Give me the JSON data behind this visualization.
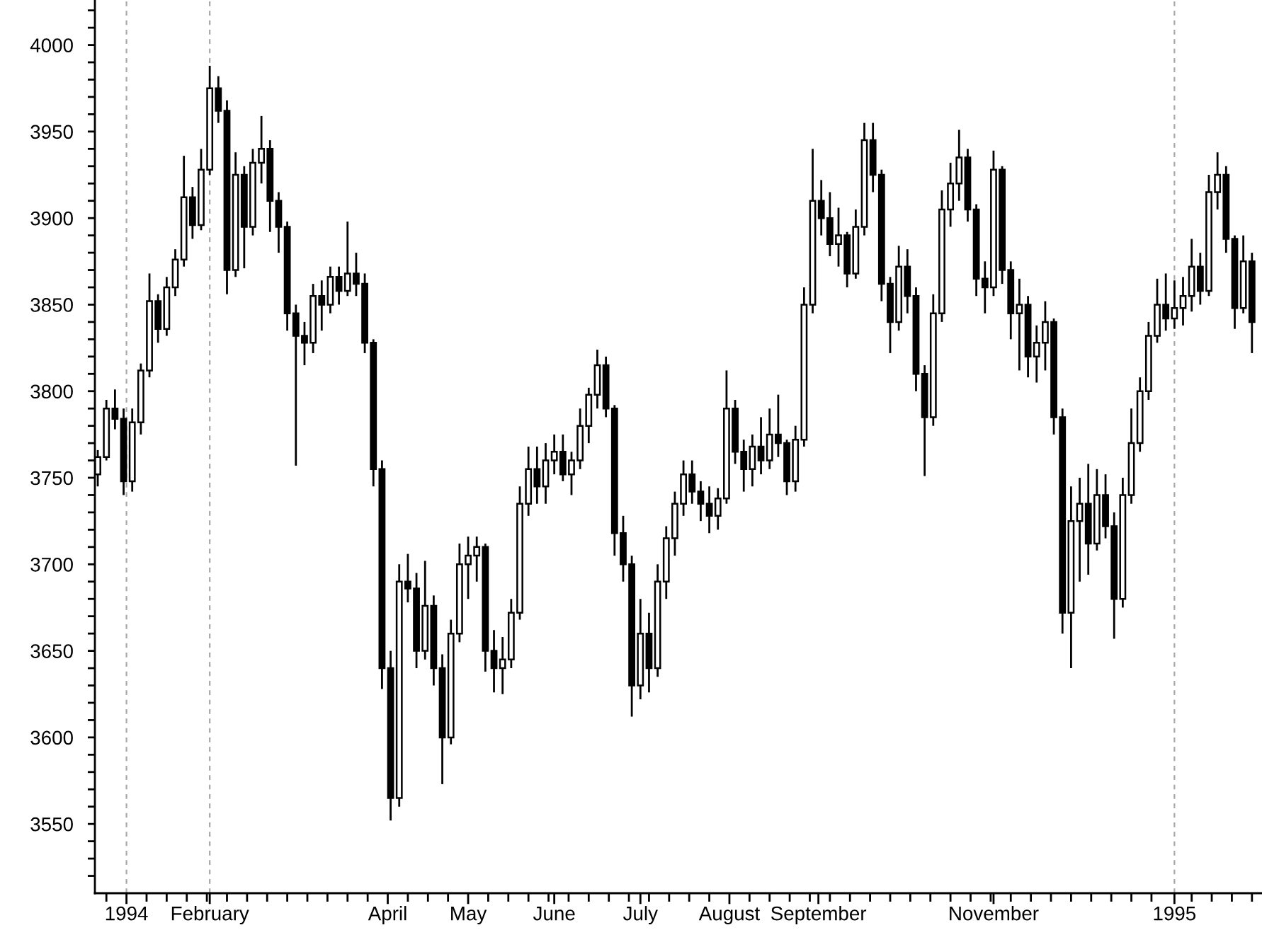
{
  "chart_data": {
    "type": "candlestick",
    "color": "#000000",
    "x": [
      "1993-12-24",
      "1993-12-27",
      "1993-12-30",
      "1994-01-02",
      "1994-01-05",
      "1994-01-08",
      "1994-01-11",
      "1994-01-14",
      "1994-01-17",
      "1994-01-20",
      "1994-01-23",
      "1994-01-26",
      "1994-01-29",
      "1994-02-01",
      "1994-02-04",
      "1994-02-07",
      "1994-02-10",
      "1994-02-13",
      "1994-02-16",
      "1994-02-19",
      "1994-02-22",
      "1994-02-25",
      "1994-02-28",
      "1994-03-03",
      "1994-03-06",
      "1994-03-09",
      "1994-03-12",
      "1994-03-15",
      "1994-03-18",
      "1994-03-21",
      "1994-03-24",
      "1994-03-27",
      "1994-03-30",
      "1994-04-02",
      "1994-04-05",
      "1994-04-08",
      "1994-04-11",
      "1994-04-14",
      "1994-04-17",
      "1994-04-20",
      "1994-04-23",
      "1994-04-26",
      "1994-04-29",
      "1994-05-02",
      "1994-05-05",
      "1994-05-08",
      "1994-05-11",
      "1994-05-14",
      "1994-05-17",
      "1994-05-20",
      "1994-05-23",
      "1994-05-26",
      "1994-05-29",
      "1994-06-01",
      "1994-06-04",
      "1994-06-07",
      "1994-06-10",
      "1994-06-13",
      "1994-06-16",
      "1994-06-19",
      "1994-06-22",
      "1994-06-25",
      "1994-06-28",
      "1994-07-01",
      "1994-07-04",
      "1994-07-07",
      "1994-07-10",
      "1994-07-13",
      "1994-07-16",
      "1994-07-19",
      "1994-07-22",
      "1994-07-25",
      "1994-07-28",
      "1994-07-31",
      "1994-08-03",
      "1994-08-06",
      "1994-08-09",
      "1994-08-12",
      "1994-08-15",
      "1994-08-18",
      "1994-08-21",
      "1994-08-24",
      "1994-08-27",
      "1994-08-30",
      "1994-09-02",
      "1994-09-05",
      "1994-09-08",
      "1994-09-11",
      "1994-09-14",
      "1994-09-17",
      "1994-09-20",
      "1994-09-23",
      "1994-09-26",
      "1994-09-29",
      "1994-10-02",
      "1994-10-05",
      "1994-10-08",
      "1994-10-11",
      "1994-10-14",
      "1994-10-17",
      "1994-10-20",
      "1994-10-23",
      "1994-10-26",
      "1994-10-29",
      "1994-11-01",
      "1994-11-04",
      "1994-11-07",
      "1994-11-10",
      "1994-11-13",
      "1994-11-16",
      "1994-11-19",
      "1994-11-22",
      "1994-11-25",
      "1994-11-28",
      "1994-12-01",
      "1994-12-04",
      "1994-12-07",
      "1994-12-10",
      "1994-12-13",
      "1994-12-16",
      "1994-12-19",
      "1994-12-22",
      "1994-12-25",
      "1994-12-28",
      "1994-12-31",
      "1995-01-03",
      "1995-01-06",
      "1995-01-09",
      "1995-01-12",
      "1995-01-15",
      "1995-01-18",
      "1995-01-21",
      "1995-01-24",
      "1995-01-27",
      "1995-01-30"
    ],
    "ohlc": [
      [
        3752,
        3766,
        3745,
        3762
      ],
      [
        3762,
        3795,
        3760,
        3790
      ],
      [
        3790,
        3801,
        3778,
        3784
      ],
      [
        3784,
        3790,
        3740,
        3748
      ],
      [
        3748,
        3790,
        3742,
        3782
      ],
      [
        3782,
        3816,
        3775,
        3812
      ],
      [
        3812,
        3868,
        3808,
        3852
      ],
      [
        3852,
        3856,
        3828,
        3836
      ],
      [
        3836,
        3866,
        3832,
        3860
      ],
      [
        3860,
        3882,
        3855,
        3876
      ],
      [
        3876,
        3936,
        3872,
        3912
      ],
      [
        3912,
        3918,
        3888,
        3896
      ],
      [
        3896,
        3940,
        3893,
        3928
      ],
      [
        3928,
        3988,
        3925,
        3975
      ],
      [
        3975,
        3982,
        3955,
        3962
      ],
      [
        3962,
        3968,
        3856,
        3870
      ],
      [
        3870,
        3938,
        3866,
        3925
      ],
      [
        3925,
        3930,
        3871,
        3895
      ],
      [
        3895,
        3940,
        3890,
        3932
      ],
      [
        3932,
        3959,
        3920,
        3940
      ],
      [
        3940,
        3945,
        3892,
        3910
      ],
      [
        3910,
        3915,
        3880,
        3895
      ],
      [
        3895,
        3898,
        3835,
        3845
      ],
      [
        3845,
        3850,
        3757,
        3832
      ],
      [
        3832,
        3840,
        3815,
        3828
      ],
      [
        3828,
        3862,
        3822,
        3855
      ],
      [
        3855,
        3864,
        3835,
        3850
      ],
      [
        3850,
        3872,
        3845,
        3866
      ],
      [
        3866,
        3872,
        3850,
        3858
      ],
      [
        3858,
        3898,
        3855,
        3868
      ],
      [
        3868,
        3880,
        3855,
        3862
      ],
      [
        3862,
        3868,
        3822,
        3828
      ],
      [
        3828,
        3830,
        3745,
        3755
      ],
      [
        3755,
        3760,
        3628,
        3640
      ],
      [
        3640,
        3650,
        3552,
        3565
      ],
      [
        3565,
        3700,
        3560,
        3690
      ],
      [
        3690,
        3706,
        3678,
        3686
      ],
      [
        3686,
        3695,
        3640,
        3650
      ],
      [
        3650,
        3702,
        3645,
        3676
      ],
      [
        3676,
        3682,
        3630,
        3640
      ],
      [
        3640,
        3648,
        3573,
        3600
      ],
      [
        3600,
        3668,
        3596,
        3660
      ],
      [
        3660,
        3712,
        3655,
        3700
      ],
      [
        3700,
        3716,
        3680,
        3705
      ],
      [
        3705,
        3716,
        3690,
        3710
      ],
      [
        3710,
        3712,
        3638,
        3650
      ],
      [
        3650,
        3662,
        3626,
        3640
      ],
      [
        3640,
        3658,
        3625,
        3645
      ],
      [
        3645,
        3680,
        3640,
        3672
      ],
      [
        3672,
        3745,
        3668,
        3735
      ],
      [
        3735,
        3768,
        3728,
        3755
      ],
      [
        3755,
        3768,
        3735,
        3745
      ],
      [
        3745,
        3770,
        3735,
        3760
      ],
      [
        3760,
        3775,
        3752,
        3765
      ],
      [
        3765,
        3775,
        3748,
        3752
      ],
      [
        3752,
        3765,
        3740,
        3760
      ],
      [
        3760,
        3790,
        3755,
        3780
      ],
      [
        3780,
        3802,
        3770,
        3798
      ],
      [
        3798,
        3824,
        3790,
        3815
      ],
      [
        3815,
        3820,
        3785,
        3790
      ],
      [
        3790,
        3792,
        3705,
        3718
      ],
      [
        3718,
        3728,
        3690,
        3700
      ],
      [
        3700,
        3705,
        3612,
        3630
      ],
      [
        3630,
        3680,
        3622,
        3660
      ],
      [
        3660,
        3672,
        3626,
        3640
      ],
      [
        3640,
        3700,
        3635,
        3690
      ],
      [
        3690,
        3722,
        3680,
        3715
      ],
      [
        3715,
        3742,
        3705,
        3735
      ],
      [
        3735,
        3760,
        3728,
        3752
      ],
      [
        3752,
        3760,
        3735,
        3742
      ],
      [
        3742,
        3748,
        3725,
        3735
      ],
      [
        3735,
        3745,
        3718,
        3728
      ],
      [
        3728,
        3744,
        3720,
        3738
      ],
      [
        3738,
        3812,
        3735,
        3790
      ],
      [
        3790,
        3795,
        3758,
        3765
      ],
      [
        3765,
        3772,
        3742,
        3755
      ],
      [
        3755,
        3775,
        3745,
        3768
      ],
      [
        3768,
        3785,
        3752,
        3760
      ],
      [
        3760,
        3790,
        3755,
        3775
      ],
      [
        3775,
        3798,
        3762,
        3770
      ],
      [
        3770,
        3772,
        3740,
        3748
      ],
      [
        3748,
        3780,
        3742,
        3772
      ],
      [
        3772,
        3860,
        3768,
        3850
      ],
      [
        3850,
        3940,
        3845,
        3910
      ],
      [
        3910,
        3922,
        3890,
        3900
      ],
      [
        3900,
        3915,
        3878,
        3885
      ],
      [
        3885,
        3906,
        3872,
        3890
      ],
      [
        3890,
        3892,
        3860,
        3868
      ],
      [
        3868,
        3905,
        3865,
        3895
      ],
      [
        3895,
        3955,
        3890,
        3945
      ],
      [
        3945,
        3955,
        3915,
        3925
      ],
      [
        3925,
        3928,
        3852,
        3862
      ],
      [
        3862,
        3866,
        3822,
        3840
      ],
      [
        3840,
        3884,
        3835,
        3872
      ],
      [
        3872,
        3882,
        3845,
        3855
      ],
      [
        3855,
        3860,
        3800,
        3810
      ],
      [
        3810,
        3815,
        3751,
        3785
      ],
      [
        3785,
        3856,
        3780,
        3845
      ],
      [
        3845,
        3916,
        3840,
        3905
      ],
      [
        3905,
        3932,
        3895,
        3920
      ],
      [
        3920,
        3951,
        3910,
        3935
      ],
      [
        3935,
        3940,
        3898,
        3905
      ],
      [
        3905,
        3908,
        3855,
        3865
      ],
      [
        3865,
        3875,
        3845,
        3860
      ],
      [
        3860,
        3939,
        3855,
        3928
      ],
      [
        3928,
        3930,
        3862,
        3870
      ],
      [
        3870,
        3875,
        3830,
        3845
      ],
      [
        3845,
        3865,
        3812,
        3850
      ],
      [
        3850,
        3855,
        3808,
        3820
      ],
      [
        3820,
        3838,
        3805,
        3828
      ],
      [
        3828,
        3852,
        3812,
        3840
      ],
      [
        3840,
        3842,
        3775,
        3785
      ],
      [
        3785,
        3790,
        3660,
        3672
      ],
      [
        3672,
        3745,
        3640,
        3725
      ],
      [
        3725,
        3750,
        3690,
        3735
      ],
      [
        3735,
        3758,
        3694,
        3712
      ],
      [
        3712,
        3755,
        3708,
        3740
      ],
      [
        3740,
        3752,
        3715,
        3722
      ],
      [
        3722,
        3730,
        3657,
        3680
      ],
      [
        3680,
        3750,
        3675,
        3740
      ],
      [
        3740,
        3790,
        3735,
        3770
      ],
      [
        3770,
        3808,
        3765,
        3800
      ],
      [
        3800,
        3840,
        3795,
        3832
      ],
      [
        3832,
        3865,
        3828,
        3850
      ],
      [
        3850,
        3868,
        3835,
        3842
      ],
      [
        3842,
        3864,
        3836,
        3848
      ],
      [
        3848,
        3866,
        3838,
        3855
      ],
      [
        3855,
        3888,
        3846,
        3872
      ],
      [
        3872,
        3880,
        3850,
        3858
      ],
      [
        3858,
        3925,
        3855,
        3915
      ],
      [
        3915,
        3938,
        3905,
        3925
      ],
      [
        3925,
        3930,
        3880,
        3888
      ],
      [
        3888,
        3890,
        3836,
        3848
      ],
      [
        3848,
        3890,
        3845,
        3875
      ],
      [
        3875,
        3880,
        3822,
        3840
      ]
    ],
    "xlim": [
      "1993-12-23",
      "1995-02-02T12:00"
    ],
    "ylim": [
      3510,
      4026
    ],
    "xticks": [
      {
        "value": "1993-12-27",
        "label": null
      },
      {
        "value": "1994-01-03",
        "label": "1994"
      },
      {
        "value": "1994-01-10",
        "label": null
      },
      {
        "value": "1994-01-17",
        "label": null
      },
      {
        "value": "1994-01-24",
        "label": null
      },
      {
        "value": "1994-01-31",
        "label": null
      },
      {
        "value": "1994-02-01",
        "label": "February"
      },
      {
        "value": "1994-02-07",
        "label": null
      },
      {
        "value": "1994-02-14",
        "label": null
      },
      {
        "value": "1994-02-21",
        "label": null
      },
      {
        "value": "1994-02-28",
        "label": null
      },
      {
        "value": "1994-03-07",
        "label": null
      },
      {
        "value": "1994-03-14",
        "label": null
      },
      {
        "value": "1994-03-21",
        "label": null
      },
      {
        "value": "1994-03-28",
        "label": null
      },
      {
        "value": "1994-04-04",
        "label": "April"
      },
      {
        "value": "1994-04-11",
        "label": null
      },
      {
        "value": "1994-04-18",
        "label": null
      },
      {
        "value": "1994-04-25",
        "label": null
      },
      {
        "value": "1994-05-02",
        "label": "May"
      },
      {
        "value": "1994-05-09",
        "label": null
      },
      {
        "value": "1994-05-16",
        "label": null
      },
      {
        "value": "1994-05-23",
        "label": null
      },
      {
        "value": "1994-05-30",
        "label": null
      },
      {
        "value": "1994-06-01",
        "label": "June"
      },
      {
        "value": "1994-06-06",
        "label": null
      },
      {
        "value": "1994-06-13",
        "label": null
      },
      {
        "value": "1994-06-20",
        "label": null
      },
      {
        "value": "1994-06-27",
        "label": null
      },
      {
        "value": "1994-07-01",
        "label": "July"
      },
      {
        "value": "1994-07-04",
        "label": null
      },
      {
        "value": "1994-07-11",
        "label": null
      },
      {
        "value": "1994-07-18",
        "label": null
      },
      {
        "value": "1994-07-25",
        "label": null
      },
      {
        "value": "1994-08-01",
        "label": "August"
      },
      {
        "value": "1994-08-08",
        "label": null
      },
      {
        "value": "1994-08-15",
        "label": null
      },
      {
        "value": "1994-08-22",
        "label": null
      },
      {
        "value": "1994-08-29",
        "label": null
      },
      {
        "value": "1994-09-01",
        "label": "September"
      },
      {
        "value": "1994-09-05",
        "label": null
      },
      {
        "value": "1994-09-12",
        "label": null
      },
      {
        "value": "1994-09-19",
        "label": null
      },
      {
        "value": "1994-09-26",
        "label": null
      },
      {
        "value": "1994-10-03",
        "label": null
      },
      {
        "value": "1994-10-10",
        "label": null
      },
      {
        "value": "1994-10-17",
        "label": null
      },
      {
        "value": "1994-10-24",
        "label": null
      },
      {
        "value": "1994-10-31",
        "label": null
      },
      {
        "value": "1994-11-01",
        "label": "November"
      },
      {
        "value": "1994-11-07",
        "label": null
      },
      {
        "value": "1994-11-14",
        "label": null
      },
      {
        "value": "1994-11-21",
        "label": null
      },
      {
        "value": "1994-11-28",
        "label": null
      },
      {
        "value": "1994-12-05",
        "label": null
      },
      {
        "value": "1994-12-12",
        "label": null
      },
      {
        "value": "1994-12-19",
        "label": null
      },
      {
        "value": "1994-12-26",
        "label": null
      },
      {
        "value": "1995-01-03",
        "label": "1995"
      },
      {
        "value": "1995-01-09",
        "label": null
      },
      {
        "value": "1995-01-16",
        "label": null
      },
      {
        "value": "1995-01-23",
        "label": null
      },
      {
        "value": "1995-01-30",
        "label": null
      }
    ],
    "yticks": [
      {
        "value": 3520,
        "label": null
      },
      {
        "value": 3530,
        "label": null
      },
      {
        "value": 3540,
        "label": null
      },
      3550,
      {
        "value": 3560,
        "label": null
      },
      {
        "value": 3570,
        "label": null
      },
      {
        "value": 3580,
        "label": null
      },
      {
        "value": 3590,
        "label": null
      },
      3600,
      {
        "value": 3610,
        "label": null
      },
      {
        "value": 3620,
        "label": null
      },
      {
        "value": 3630,
        "label": null
      },
      {
        "value": 3640,
        "label": null
      },
      3650,
      {
        "value": 3660,
        "label": null
      },
      {
        "value": 3670,
        "label": null
      },
      {
        "value": 3680,
        "label": null
      },
      {
        "value": 3690,
        "label": null
      },
      3700,
      {
        "value": 3710,
        "label": null
      },
      {
        "value": 3720,
        "label": null
      },
      {
        "value": 3730,
        "label": null
      },
      {
        "value": 3740,
        "label": null
      },
      3750,
      {
        "value": 3760,
        "label": null
      },
      {
        "value": 3770,
        "label": null
      },
      {
        "value": 3780,
        "label": null
      },
      {
        "value": 3790,
        "label": null
      },
      3800,
      {
        "value": 3810,
        "label": null
      },
      {
        "value": 3820,
        "label": null
      },
      {
        "value": 3830,
        "label": null
      },
      {
        "value": 3840,
        "label": null
      },
      3850,
      {
        "value": 3860,
        "label": null
      },
      {
        "value": 3870,
        "label": null
      },
      {
        "value": 3880,
        "label": null
      },
      {
        "value": 3890,
        "label": null
      },
      3900,
      {
        "value": 3910,
        "label": null
      },
      {
        "value": 3920,
        "label": null
      },
      {
        "value": 3930,
        "label": null
      },
      {
        "value": 3940,
        "label": null
      },
      3950,
      {
        "value": 3960,
        "label": null
      },
      {
        "value": 3970,
        "label": null
      },
      {
        "value": 3980,
        "label": null
      },
      {
        "value": 3990,
        "label": null
      },
      4000,
      {
        "value": 4010,
        "label": null
      },
      {
        "value": 4020,
        "label": null
      }
    ],
    "ref_lines": [
      {
        "axis": "x",
        "value": "1994-01-03",
        "color": "#a8a8a8",
        "line_style": "dashed"
      },
      {
        "axis": "x",
        "value": "1994-02-01",
        "color": "#a8a8a8",
        "line_style": "dashed"
      },
      {
        "axis": "x",
        "value": "1995-01-03",
        "color": "#a8a8a8",
        "line_style": "dashed"
      }
    ]
  }
}
